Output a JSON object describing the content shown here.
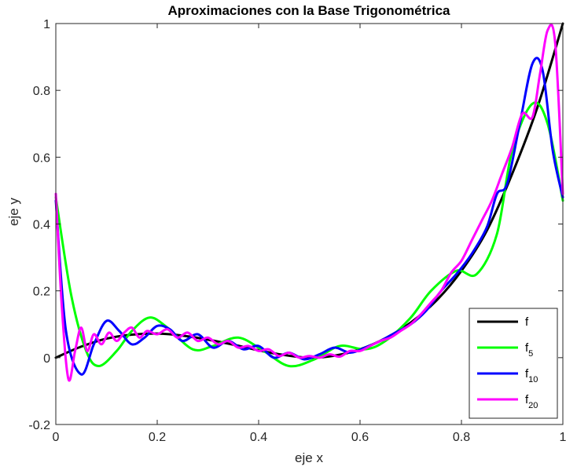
{
  "chart_data": {
    "type": "line",
    "title": "Aproximaciones con la Base Trigonométrica",
    "xlabel": "eje x",
    "ylabel": "eje y",
    "xlim": [
      0,
      1
    ],
    "ylim": [
      -0.2,
      1
    ],
    "xticks": [
      "0",
      "0.2",
      "0.4",
      "0.6",
      "0.8",
      "1"
    ],
    "yticks": [
      "-0.2",
      "0",
      "0.2",
      "0.4",
      "0.6",
      "0.8",
      "1"
    ],
    "grid": false,
    "legend_position": "bottom-right",
    "series": [
      {
        "name": "f",
        "legend_main": "f",
        "legend_sub": "",
        "color": "#000000",
        "x": [
          0,
          0.05,
          0.1,
          0.15,
          0.2,
          0.25,
          0.3,
          0.35,
          0.4,
          0.45,
          0.5,
          0.55,
          0.6,
          0.65,
          0.7,
          0.75,
          0.8,
          0.85,
          0.9,
          0.95,
          1
        ],
        "y": [
          0.0,
          0.033,
          0.057,
          0.069,
          0.072,
          0.066,
          0.054,
          0.039,
          0.022,
          0.008,
          0.0,
          0.006,
          0.025,
          0.058,
          0.105,
          0.17,
          0.26,
          0.38,
          0.55,
          0.75,
          1.0
        ]
      },
      {
        "name": "f5",
        "legend_main": "f",
        "legend_sub": "5",
        "color": "#00ff00",
        "x": [
          0,
          0.03,
          0.06,
          0.085,
          0.12,
          0.15,
          0.185,
          0.22,
          0.27,
          0.31,
          0.36,
          0.41,
          0.46,
          0.51,
          0.56,
          0.61,
          0.65,
          0.7,
          0.74,
          0.79,
          0.83,
          0.87,
          0.9,
          0.94,
          0.97,
          1
        ],
        "y": [
          0.48,
          0.19,
          0.02,
          -0.025,
          0.02,
          0.08,
          0.12,
          0.09,
          0.025,
          0.035,
          0.06,
          0.02,
          -0.025,
          -0.005,
          0.035,
          0.025,
          0.05,
          0.12,
          0.2,
          0.26,
          0.25,
          0.37,
          0.62,
          0.76,
          0.7,
          0.47
        ]
      },
      {
        "name": "f10",
        "legend_main": "f",
        "legend_sub": "10",
        "color": "#0000ff",
        "x": [
          0,
          0.02,
          0.05,
          0.075,
          0.1,
          0.125,
          0.15,
          0.175,
          0.2,
          0.225,
          0.25,
          0.28,
          0.31,
          0.34,
          0.37,
          0.4,
          0.43,
          0.46,
          0.49,
          0.52,
          0.55,
          0.58,
          0.61,
          0.64,
          0.67,
          0.7,
          0.73,
          0.76,
          0.79,
          0.82,
          0.85,
          0.87,
          0.89,
          0.915,
          0.94,
          0.96,
          0.98,
          1
        ],
        "y": [
          0.47,
          0.08,
          -0.05,
          0.04,
          0.11,
          0.08,
          0.04,
          0.06,
          0.095,
          0.085,
          0.05,
          0.07,
          0.03,
          0.05,
          0.025,
          0.035,
          0.0,
          0.015,
          -0.005,
          0.01,
          0.03,
          0.015,
          0.03,
          0.05,
          0.075,
          0.1,
          0.14,
          0.2,
          0.25,
          0.31,
          0.39,
          0.49,
          0.52,
          0.7,
          0.88,
          0.86,
          0.62,
          0.48
        ]
      },
      {
        "name": "f20",
        "legend_main": "f",
        "legend_sub": "20",
        "color": "#ff00ff",
        "x": [
          0,
          0.012,
          0.025,
          0.038,
          0.05,
          0.062,
          0.075,
          0.09,
          0.105,
          0.12,
          0.135,
          0.15,
          0.165,
          0.18,
          0.2,
          0.22,
          0.24,
          0.26,
          0.28,
          0.3,
          0.32,
          0.34,
          0.36,
          0.38,
          0.4,
          0.42,
          0.44,
          0.46,
          0.48,
          0.5,
          0.52,
          0.54,
          0.56,
          0.58,
          0.6,
          0.62,
          0.64,
          0.66,
          0.68,
          0.7,
          0.72,
          0.74,
          0.76,
          0.78,
          0.8,
          0.82,
          0.84,
          0.86,
          0.88,
          0.9,
          0.92,
          0.94,
          0.955,
          0.97,
          0.985,
          1
        ],
        "y": [
          0.49,
          0.15,
          -0.065,
          0.02,
          0.09,
          0.02,
          0.07,
          0.04,
          0.075,
          0.05,
          0.075,
          0.09,
          0.06,
          0.08,
          0.07,
          0.085,
          0.06,
          0.075,
          0.05,
          0.06,
          0.04,
          0.05,
          0.03,
          0.035,
          0.02,
          0.025,
          0.005,
          0.015,
          0.0,
          0.005,
          0.0,
          0.01,
          0.003,
          0.02,
          0.02,
          0.035,
          0.05,
          0.06,
          0.08,
          0.1,
          0.13,
          0.165,
          0.2,
          0.255,
          0.29,
          0.35,
          0.41,
          0.47,
          0.55,
          0.63,
          0.73,
          0.72,
          0.85,
          0.98,
          0.94,
          0.49
        ]
      }
    ]
  }
}
